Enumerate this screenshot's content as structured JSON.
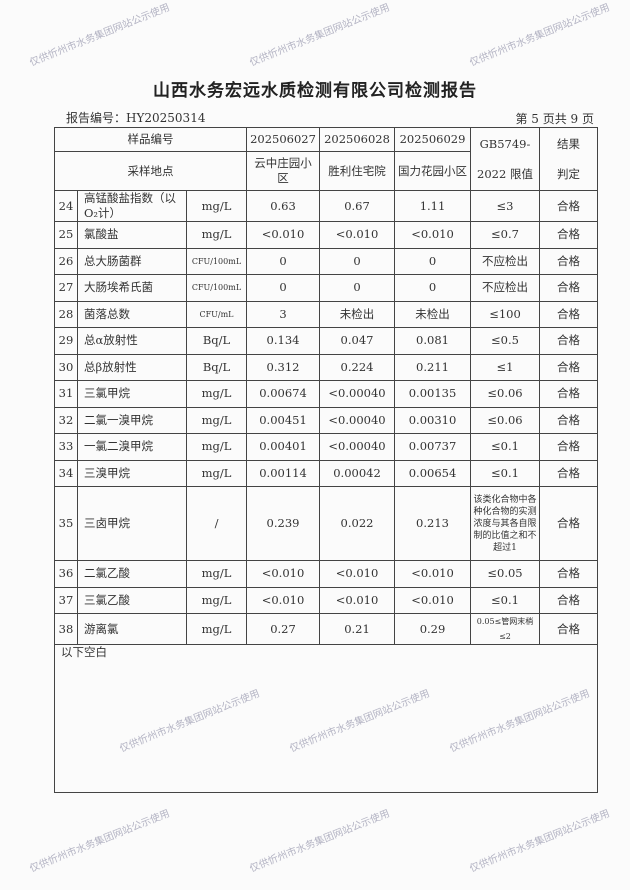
{
  "title": "山西水务宏远水质检测有限公司检测报告",
  "report_no": "报告编号：HY20250314",
  "page_info": "第 5 页共 9 页",
  "header": {
    "sample_no_label": "样品编号",
    "location_label": "采样地点",
    "samples": [
      "202506027",
      "202506028",
      "202506029"
    ],
    "locations": [
      "云中庄园小区",
      "胜利住宅院",
      "国力花园小区"
    ],
    "limit_label_1": "GB5749-",
    "limit_label_2": "2022 限值",
    "result_label_1": "结果",
    "result_label_2": "判定"
  },
  "rows": [
    {
      "no": "24",
      "item": "高锰酸盐指数（以O₂计）",
      "unit": "mg/L",
      "v": [
        "0.63",
        "0.67",
        "1.11"
      ],
      "limit": "≤3",
      "result": "合格"
    },
    {
      "no": "25",
      "item": "氯酸盐",
      "unit": "mg/L",
      "v": [
        "<0.010",
        "<0.010",
        "<0.010"
      ],
      "limit": "≤0.7",
      "result": "合格"
    },
    {
      "no": "26",
      "item": "总大肠菌群",
      "unit": "CFU/100mL",
      "v": [
        "0",
        "0",
        "0"
      ],
      "limit": "不应检出",
      "result": "合格"
    },
    {
      "no": "27",
      "item": "大肠埃希氏菌",
      "unit": "CFU/100mL",
      "v": [
        "0",
        "0",
        "0"
      ],
      "limit": "不应检出",
      "result": "合格"
    },
    {
      "no": "28",
      "item": "菌落总数",
      "unit": "CFU/mL",
      "v": [
        "3",
        "未检出",
        "未检出"
      ],
      "limit": "≤100",
      "result": "合格"
    },
    {
      "no": "29",
      "item": "总α放射性",
      "unit": "Bq/L",
      "v": [
        "0.134",
        "0.047",
        "0.081"
      ],
      "limit": "≤0.5",
      "result": "合格"
    },
    {
      "no": "30",
      "item": "总β放射性",
      "unit": "Bq/L",
      "v": [
        "0.312",
        "0.224",
        "0.211"
      ],
      "limit": "≤1",
      "result": "合格"
    },
    {
      "no": "31",
      "item": "三氯甲烷",
      "unit": "mg/L",
      "v": [
        "0.00674",
        "<0.00040",
        "0.00135"
      ],
      "limit": "≤0.06",
      "result": "合格"
    },
    {
      "no": "32",
      "item": "二氯一溴甲烷",
      "unit": "mg/L",
      "v": [
        "0.00451",
        "<0.00040",
        "0.00310"
      ],
      "limit": "≤0.06",
      "result": "合格"
    },
    {
      "no": "33",
      "item": "一氯二溴甲烷",
      "unit": "mg/L",
      "v": [
        "0.00401",
        "<0.00040",
        "0.00737"
      ],
      "limit": "≤0.1",
      "result": "合格"
    },
    {
      "no": "34",
      "item": "三溴甲烷",
      "unit": "mg/L",
      "v": [
        "0.00114",
        "0.00042",
        "0.00654"
      ],
      "limit": "≤0.1",
      "result": "合格"
    },
    {
      "no": "35",
      "item": "三卤甲烷",
      "unit": "/",
      "v": [
        "0.239",
        "0.022",
        "0.213"
      ],
      "limit": "该类化合物中各种化合物的实测浓度与其各自限制的比值之和不超过1",
      "result": "合格"
    },
    {
      "no": "36",
      "item": "二氯乙酸",
      "unit": "mg/L",
      "v": [
        "<0.010",
        "<0.010",
        "<0.010"
      ],
      "limit": "≤0.05",
      "result": "合格"
    },
    {
      "no": "37",
      "item": "三氯乙酸",
      "unit": "mg/L",
      "v": [
        "<0.010",
        "<0.010",
        "<0.010"
      ],
      "limit": "≤0.1",
      "result": "合格"
    },
    {
      "no": "38",
      "item": "游离氯",
      "unit": "mg/L",
      "v": [
        "0.27",
        "0.21",
        "0.29"
      ],
      "limit": "0.05≤管网末梢≤2",
      "result": "合格"
    }
  ],
  "blank_note": "以下空白",
  "watermark": "仅供忻州市水务集团网站公示使用"
}
